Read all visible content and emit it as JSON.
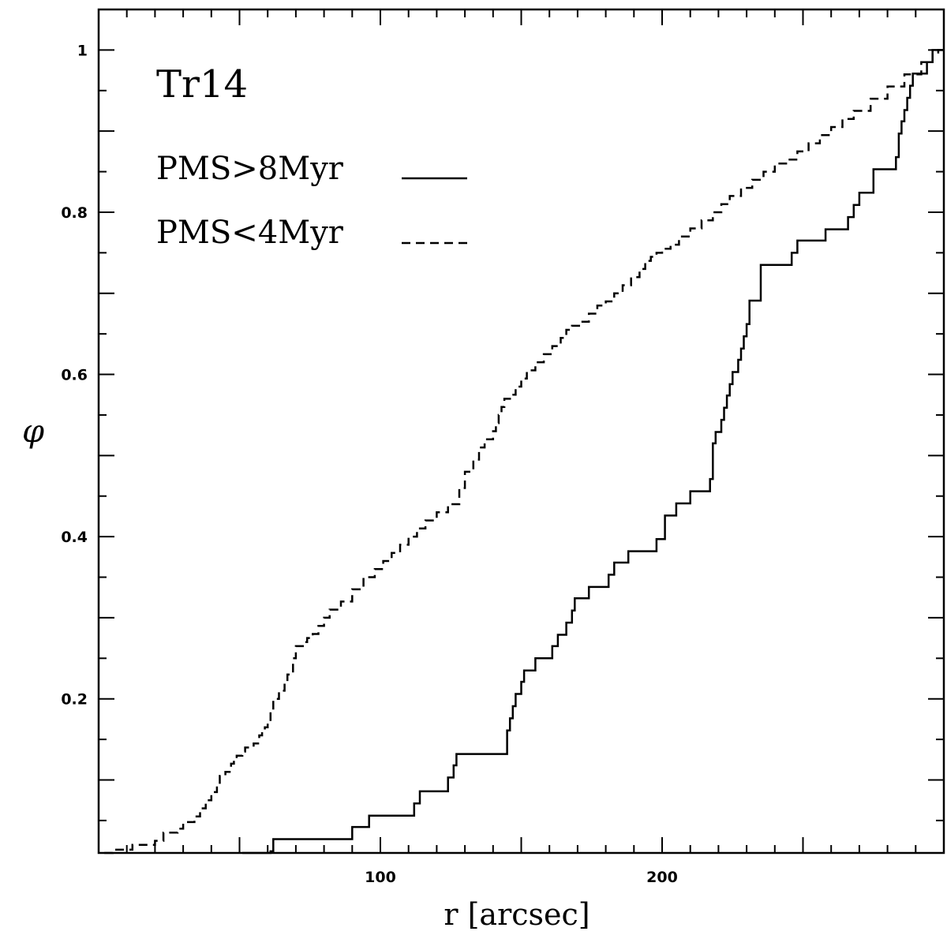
{
  "chart_data": {
    "type": "line",
    "step": true,
    "annotation": "Tr14",
    "xlabel": "r [arcsec]",
    "ylabel": "φ",
    "xlim": [
      0,
      300
    ],
    "ylim": [
      0.01,
      1.05
    ],
    "xticks_labeled": [
      100,
      200
    ],
    "yticks_labeled": [
      0.2,
      0.4,
      0.6,
      0.8,
      1
    ],
    "legend_position": "top-left",
    "grid": false,
    "series": [
      {
        "name": "PMS>8Myr",
        "style": "solid",
        "x": [
          51,
          61,
          62,
          90,
          96,
          112,
          114,
          117,
          124,
          126,
          127,
          145,
          146,
          147,
          148,
          149,
          150,
          151,
          153,
          155,
          159,
          161,
          163,
          166,
          168,
          169,
          170,
          174,
          178,
          181,
          183,
          188,
          196,
          198,
          201,
          205,
          207,
          210,
          215,
          217,
          218,
          219,
          220,
          221,
          222,
          223,
          224,
          225,
          226,
          227,
          228,
          229,
          230,
          231,
          232,
          233,
          235,
          246,
          248,
          252,
          258,
          266,
          268,
          270,
          272,
          275,
          283,
          284,
          285,
          286,
          287,
          288,
          289,
          294,
          296,
          298,
          300
        ],
        "y": [
          0.01,
          0.012,
          0.027,
          0.042,
          0.056,
          0.071,
          0.086,
          0.086,
          0.103,
          0.118,
          0.132,
          0.161,
          0.176,
          0.191,
          0.206,
          0.206,
          0.221,
          0.235,
          0.235,
          0.25,
          0.25,
          0.265,
          0.279,
          0.294,
          0.309,
          0.324,
          0.324,
          0.338,
          0.338,
          0.353,
          0.368,
          0.382,
          0.382,
          0.397,
          0.426,
          0.441,
          0.441,
          0.456,
          0.456,
          0.471,
          0.515,
          0.529,
          0.529,
          0.544,
          0.559,
          0.574,
          0.588,
          0.603,
          0.603,
          0.618,
          0.632,
          0.647,
          0.662,
          0.691,
          0.691,
          0.691,
          0.735,
          0.75,
          0.765,
          0.765,
          0.779,
          0.794,
          0.809,
          0.824,
          0.824,
          0.853,
          0.868,
          0.897,
          0.912,
          0.926,
          0.941,
          0.956,
          0.971,
          0.985,
          1.0,
          1.0,
          1.0
        ]
      },
      {
        "name": "PMS<4Myr",
        "style": "dashed",
        "x": [
          2,
          5,
          10,
          12,
          20,
          23,
          28,
          30,
          34,
          36,
          38,
          40,
          42,
          43,
          45,
          47,
          48,
          49,
          51,
          52,
          55,
          57,
          58,
          59,
          60,
          61,
          62,
          64,
          66,
          67,
          69,
          70,
          73,
          74,
          76,
          78,
          80,
          82,
          86,
          90,
          94,
          98,
          101,
          104,
          107,
          110,
          113,
          116,
          120,
          124,
          128,
          130,
          133,
          135,
          137,
          140,
          141,
          142,
          143,
          144,
          146,
          148,
          150,
          152,
          155,
          158,
          161,
          164,
          166,
          168,
          171,
          174,
          177,
          180,
          183,
          186,
          189,
          192,
          194,
          196,
          198,
          200,
          203,
          206,
          210,
          214,
          218,
          221,
          224,
          228,
          232,
          236,
          240,
          244,
          248,
          252,
          256,
          260,
          264,
          268,
          274,
          280,
          286,
          292,
          296,
          298,
          300
        ],
        "y": [
          0.01,
          0.014,
          0.014,
          0.02,
          0.025,
          0.035,
          0.04,
          0.048,
          0.055,
          0.065,
          0.075,
          0.085,
          0.095,
          0.105,
          0.11,
          0.12,
          0.125,
          0.13,
          0.135,
          0.14,
          0.145,
          0.155,
          0.16,
          0.165,
          0.17,
          0.185,
          0.2,
          0.21,
          0.22,
          0.23,
          0.25,
          0.265,
          0.27,
          0.275,
          0.28,
          0.29,
          0.3,
          0.31,
          0.32,
          0.335,
          0.35,
          0.36,
          0.37,
          0.38,
          0.39,
          0.4,
          0.41,
          0.42,
          0.43,
          0.44,
          0.46,
          0.48,
          0.495,
          0.51,
          0.52,
          0.53,
          0.54,
          0.55,
          0.56,
          0.57,
          0.575,
          0.585,
          0.595,
          0.605,
          0.615,
          0.625,
          0.635,
          0.645,
          0.655,
          0.66,
          0.665,
          0.675,
          0.685,
          0.69,
          0.7,
          0.71,
          0.72,
          0.73,
          0.74,
          0.745,
          0.75,
          0.755,
          0.76,
          0.77,
          0.78,
          0.79,
          0.8,
          0.81,
          0.82,
          0.83,
          0.84,
          0.85,
          0.86,
          0.865,
          0.875,
          0.885,
          0.895,
          0.905,
          0.915,
          0.925,
          0.94,
          0.955,
          0.97,
          0.985,
          0.995,
          1.0,
          1.0
        ]
      }
    ]
  }
}
